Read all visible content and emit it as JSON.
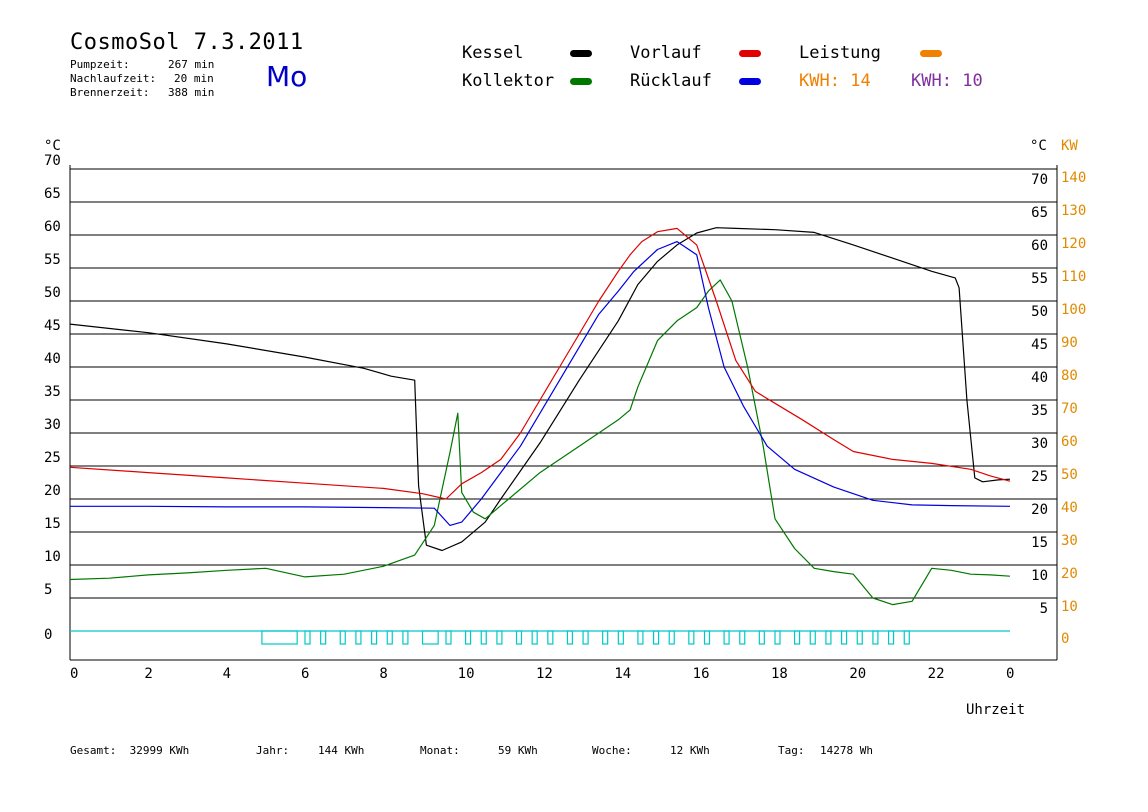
{
  "header": {
    "title": "CosmoSol 7.3.2011",
    "weekday": "Mo",
    "stats": [
      {
        "label": "Pumpzeit:",
        "value": "267 min"
      },
      {
        "label": "Nachlaufzeit:",
        "value": "20 min"
      },
      {
        "label": "Brennerzeit:",
        "value": "388 min"
      }
    ]
  },
  "legend": {
    "items": [
      {
        "label": "Kessel",
        "color": "#000000"
      },
      {
        "label": "Kollektor",
        "color": "#007800"
      },
      {
        "label": "Vorlauf",
        "color": "#e00000"
      },
      {
        "label": "Rücklauf",
        "color": "#0000e0"
      },
      {
        "label": "Leistung",
        "color": "#f08000"
      }
    ],
    "kwh_orange": {
      "label": "KWH:",
      "value": "14",
      "color": "#f08000"
    },
    "kwh_purple": {
      "label": "KWH:",
      "value": "10",
      "color": "#8030a0"
    }
  },
  "footer": {
    "gesamt_label": "Gesamt:",
    "gesamt_value": "32999 KWh",
    "jahr_label": "Jahr:",
    "jahr_value": "144 KWh",
    "monat_label": "Monat:",
    "monat_value": "59 KWh",
    "woche_label": "Woche:",
    "woche_value": "12 KWh",
    "tag_label": "Tag:",
    "tag_value": "14278 Wh"
  },
  "chart_data": {
    "type": "line",
    "xlabel": "Uhrzeit",
    "ylabel_left": "°C",
    "ylabel_right_1": "°C",
    "ylabel_right_2": "KW",
    "xlim": [
      0,
      24
    ],
    "ylim": [
      0,
      70
    ],
    "ylim_right_kw": [
      0,
      140
    ],
    "x_ticks": [
      "0",
      "2",
      "4",
      "6",
      "8",
      "10",
      "12",
      "14",
      "16",
      "18",
      "20",
      "22",
      "0"
    ],
    "y_ticks": [
      "0",
      "5",
      "10",
      "15",
      "20",
      "25",
      "30",
      "35",
      "40",
      "45",
      "50",
      "55",
      "60",
      "65",
      "70"
    ],
    "y_ticks_right_c": [
      "5",
      "10",
      "15",
      "20",
      "25",
      "30",
      "35",
      "40",
      "45",
      "50",
      "55",
      "60",
      "65",
      "70"
    ],
    "y_ticks_right_kw": [
      "0",
      "10",
      "20",
      "30",
      "40",
      "50",
      "60",
      "70",
      "80",
      "90",
      "100",
      "110",
      "120",
      "130",
      "140"
    ],
    "grid": "horizontal",
    "series": [
      {
        "name": "Kessel",
        "color": "#000000",
        "points": [
          [
            0,
            46.5
          ],
          [
            2,
            45.2
          ],
          [
            4,
            43.5
          ],
          [
            6,
            41.5
          ],
          [
            7.5,
            39.8
          ],
          [
            8.2,
            38.6
          ],
          [
            8.8,
            38.0
          ],
          [
            8.9,
            22
          ],
          [
            9.1,
            13
          ],
          [
            9.5,
            12.2
          ],
          [
            10,
            13.5
          ],
          [
            10.6,
            16.5
          ],
          [
            11,
            20
          ],
          [
            12,
            28.5
          ],
          [
            13,
            38
          ],
          [
            14,
            47
          ],
          [
            14.5,
            52.5
          ],
          [
            15,
            56
          ],
          [
            15.5,
            58.5
          ],
          [
            16,
            60.3
          ],
          [
            16.5,
            61.1
          ],
          [
            17,
            61.0
          ],
          [
            18,
            60.8
          ],
          [
            19,
            60.4
          ],
          [
            20,
            58.5
          ],
          [
            21,
            56.5
          ],
          [
            22,
            54.5
          ],
          [
            22.6,
            53.5
          ],
          [
            22.7,
            52
          ],
          [
            22.9,
            35
          ],
          [
            23.1,
            23.2
          ],
          [
            23.3,
            22.6
          ],
          [
            23.7,
            22.9
          ],
          [
            24,
            23.0
          ]
        ]
      },
      {
        "name": "Kollektor",
        "color": "#007800",
        "points": [
          [
            0,
            7.8
          ],
          [
            1,
            8.0
          ],
          [
            2,
            8.5
          ],
          [
            3,
            8.8
          ],
          [
            4,
            9.2
          ],
          [
            5,
            9.5
          ],
          [
            6,
            8.2
          ],
          [
            7,
            8.6
          ],
          [
            8,
            9.8
          ],
          [
            8.8,
            11.5
          ],
          [
            9.3,
            16
          ],
          [
            9.7,
            27
          ],
          [
            9.9,
            33
          ],
          [
            10,
            21
          ],
          [
            10.3,
            18
          ],
          [
            10.6,
            17
          ],
          [
            11,
            19
          ],
          [
            12,
            24
          ],
          [
            13,
            28
          ],
          [
            14,
            32
          ],
          [
            14.3,
            33.5
          ],
          [
            14.5,
            37
          ],
          [
            15,
            44
          ],
          [
            15.5,
            47
          ],
          [
            16,
            49
          ],
          [
            16.3,
            51.5
          ],
          [
            16.6,
            53.2
          ],
          [
            16.9,
            50
          ],
          [
            17.3,
            40
          ],
          [
            17.7,
            28
          ],
          [
            18,
            17
          ],
          [
            18.5,
            12.5
          ],
          [
            19,
            9.5
          ],
          [
            19.5,
            9
          ],
          [
            20,
            8.6
          ],
          [
            20.5,
            5
          ],
          [
            21,
            4
          ],
          [
            21.5,
            4.5
          ],
          [
            22,
            9.5
          ],
          [
            22.5,
            9.2
          ],
          [
            23,
            8.6
          ],
          [
            23.5,
            8.5
          ],
          [
            24,
            8.3
          ]
        ]
      },
      {
        "name": "Vorlauf",
        "color": "#e00000",
        "points": [
          [
            0,
            24.8
          ],
          [
            2,
            24.0
          ],
          [
            4,
            23.2
          ],
          [
            6,
            22.4
          ],
          [
            8,
            21.6
          ],
          [
            9,
            20.8
          ],
          [
            9.6,
            20.0
          ],
          [
            10,
            22.3
          ],
          [
            10.5,
            24
          ],
          [
            11,
            26
          ],
          [
            11.5,
            30
          ],
          [
            12,
            35
          ],
          [
            12.5,
            40
          ],
          [
            13,
            45
          ],
          [
            13.5,
            50
          ],
          [
            14,
            54.5
          ],
          [
            14.3,
            57
          ],
          [
            14.6,
            59
          ],
          [
            15,
            60.5
          ],
          [
            15.5,
            61
          ],
          [
            16,
            58.5
          ],
          [
            16.5,
            50
          ],
          [
            17,
            41
          ],
          [
            17.5,
            36.3
          ],
          [
            18,
            34.5
          ],
          [
            18.7,
            32
          ],
          [
            19.5,
            29
          ],
          [
            20,
            27.2
          ],
          [
            21,
            26.0
          ],
          [
            22,
            25.4
          ],
          [
            23,
            24.5
          ],
          [
            23.5,
            23.5
          ],
          [
            24,
            22.7
          ]
        ]
      },
      {
        "name": "Rücklauf",
        "color": "#0000e0",
        "points": [
          [
            0,
            18.9
          ],
          [
            2,
            18.9
          ],
          [
            4,
            18.8
          ],
          [
            6,
            18.8
          ],
          [
            8,
            18.7
          ],
          [
            9.3,
            18.6
          ],
          [
            9.7,
            16
          ],
          [
            10,
            16.5
          ],
          [
            10.5,
            20
          ],
          [
            11,
            24
          ],
          [
            11.5,
            28
          ],
          [
            12,
            33
          ],
          [
            12.5,
            38
          ],
          [
            13,
            43
          ],
          [
            13.5,
            48
          ],
          [
            14,
            51.5
          ],
          [
            14.4,
            54.5
          ],
          [
            15,
            57.8
          ],
          [
            15.5,
            59
          ],
          [
            16,
            57
          ],
          [
            16.3,
            49
          ],
          [
            16.7,
            40
          ],
          [
            17.2,
            34
          ],
          [
            17.8,
            28
          ],
          [
            18.5,
            24.5
          ],
          [
            19.5,
            21.8
          ],
          [
            20.5,
            19.8
          ],
          [
            21.5,
            19.1
          ],
          [
            22.5,
            19.0
          ],
          [
            24,
            18.9
          ]
        ]
      }
    ],
    "pump_periods": [
      [
        4.9,
        5.8
      ],
      [
        9.0,
        9.4
      ]
    ],
    "pump_pulses_x": [
      6.0,
      6.4,
      6.9,
      7.3,
      7.7,
      8.1,
      8.5,
      9.6,
      10.1,
      10.5,
      10.9,
      11.4,
      11.8,
      12.2,
      12.7,
      13.1,
      13.6,
      14.0,
      14.5,
      14.9,
      15.3,
      15.8,
      16.2,
      16.7,
      17.1,
      17.6,
      18.0,
      18.5,
      18.9,
      19.3,
      19.7,
      20.1,
      20.5,
      20.9,
      21.3
    ]
  }
}
